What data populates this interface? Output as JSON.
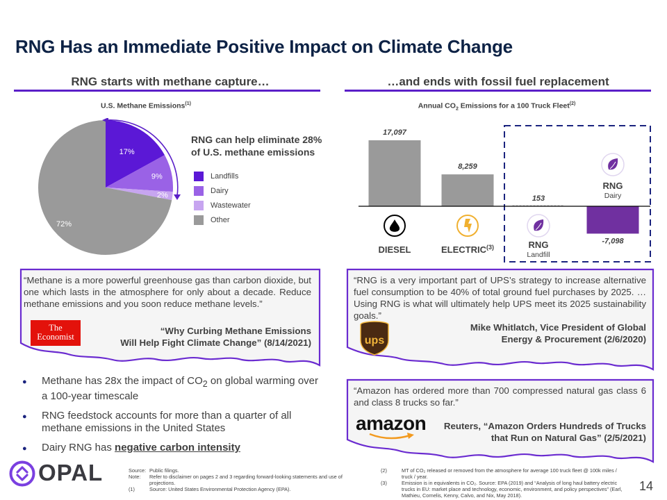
{
  "slide": {
    "title": "RNG Has an Immediate Positive Impact on Climate Change",
    "page_number": "14"
  },
  "left_section": {
    "heading": "RNG starts with methane capture…",
    "chart_title": "U.S. Methane Emissions",
    "chart_title_sup": "(1)",
    "callout": "RNG can help eliminate 28% of U.S. methane emissions"
  },
  "right_section": {
    "heading": "…and ends with fossil fuel replacement",
    "chart_title_prefix": "Annual CO",
    "chart_title_sub": "2",
    "chart_title_suffix": " Emissions for a 100 Truck Fleet",
    "chart_title_sup": "(2)"
  },
  "chart_data": [
    {
      "type": "pie",
      "title": "U.S. Methane Emissions",
      "categories": [
        "Landfills",
        "Dairy",
        "Wastewater",
        "Other"
      ],
      "values": [
        17,
        9,
        2,
        72
      ],
      "labels": [
        "17%",
        "9%",
        "2%",
        "72%"
      ],
      "colors": [
        "#5b18d6",
        "#9a62e6",
        "#c7a5f0",
        "#9a9a9a"
      ],
      "legend": "right",
      "annotation": "RNG can help eliminate 28% of U.S. methane emissions"
    },
    {
      "type": "bar",
      "title": "Annual CO2 Emissions for a 100 Truck Fleet",
      "categories": [
        "DIESEL",
        "ELECTRIC",
        "RNG Landfill",
        "RNG Dairy"
      ],
      "category_labels": [
        {
          "main": "DIESEL",
          "sup": "",
          "sub": ""
        },
        {
          "main": "ELECTRIC",
          "sup": "(3)",
          "sub": ""
        },
        {
          "main": "RNG",
          "sup": "",
          "sub": "Landfill"
        },
        {
          "main": "RNG",
          "sup": "",
          "sub": "Dairy"
        }
      ],
      "values": [
        17097,
        8259,
        153,
        -7098
      ],
      "value_labels": [
        "17,097",
        "8,259",
        "153",
        "-7,098"
      ],
      "colors": [
        "#9a9a9a",
        "#9a9a9a",
        "#9a9a9a",
        "#7030a0"
      ],
      "icons": [
        "oil-drop-icon",
        "lightning-icon",
        "leaf-icon",
        "leaf-icon"
      ],
      "icon_colors": [
        "#000000",
        "#f0b030",
        "#7030a0",
        "#7030a0"
      ],
      "highlight": "RNG Landfill, RNG Dairy (dashed box)",
      "ylim": [
        -7098,
        17097
      ],
      "xlabel": "",
      "ylabel": ""
    }
  ],
  "quotes": {
    "economist": {
      "text": "“Methane is a more powerful greenhouse gas than carbon dioxide, but one which lasts in the atmosphere for only about a decade. Reduce methane emissions and you soon reduce methane levels.”",
      "logo_line1": "The",
      "logo_line2": "Economist",
      "attribution_line1": "“Why Curbing Methane Emissions",
      "attribution_line2": "Will Help Fight Climate Change” (8/14/2021)"
    },
    "ups": {
      "text": "“RNG is a very important part of UPS’s strategy to increase alternative fuel consumption to be 40% of total ground fuel purchases by 2025. …Using RNG is what will ultimately help UPS meet its 2025 sustainability goals.”",
      "logo_text": "ups",
      "attribution_line1": "Mike Whitlatch, Vice President of Global",
      "attribution_line2": "Energy & Procurement (2/6/2020)"
    },
    "amazon": {
      "text": "“Amazon has ordered more than 700 compressed natural gas class 6 and class 8 trucks so far.”",
      "logo_text": "amazon",
      "attribution_line1": "Reuters, “Amazon Orders Hundreds of Trucks",
      "attribution_line2": "that Run on Natural Gas” (2/5/2021)"
    }
  },
  "bullets": [
    {
      "pre": "Methane has 28x the impact of CO",
      "sub": "2",
      "post": " on global warming over a 100-year timescale"
    },
    {
      "pre": "RNG feedstock accounts for more than a quarter of all methane emissions in the United States",
      "sub": "",
      "post": ""
    },
    {
      "pre": "Dairy RNG has ",
      "sub": "",
      "post": "",
      "emph": "negative carbon intensity"
    }
  ],
  "footer": {
    "logo_text": "OPAL",
    "notes_left": [
      {
        "key": "Source:",
        "text": "Public filings."
      },
      {
        "key": "Note:",
        "text": "Refer to disclaimer on pages 2 and 3 regarding forward-looking statements and use of projections."
      },
      {
        "key": "(1)",
        "text": "Source: United States Environmental Protection Agency (EPA)."
      }
    ],
    "notes_right": [
      {
        "key": "(2)",
        "text": "MT of CO₂ released or removed from the atmosphere for average 100 truck fleet @ 100k miles / truck / year."
      },
      {
        "key": "(3)",
        "text": "Emission is in equivalents in CO₂. Source: EPA (2019) and “Analysis of long haul battery electric trucks in EU: market place and technology, economic, environment, and policy perspectives” (Earl, Mathieu, Cornelis, Kenny, Calvo, and Nix, May 2018)."
      }
    ]
  },
  "colors": {
    "title": "#0d2245",
    "accent_purple": "#5a1fc8",
    "rng_purple": "#7030a0",
    "dashed_box": "#1a237e",
    "text": "#404040"
  }
}
